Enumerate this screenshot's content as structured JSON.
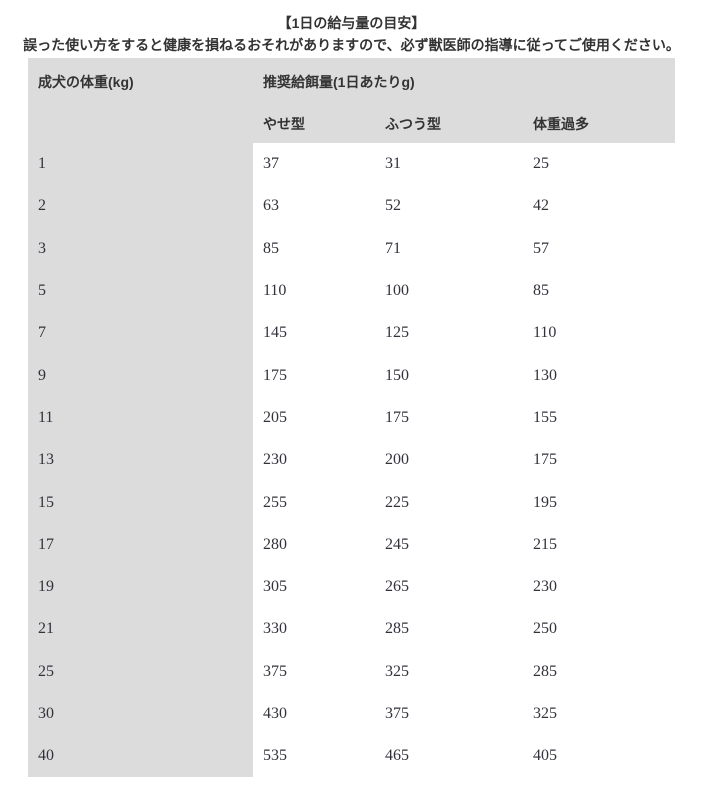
{
  "page": {
    "title": "【1日の給与量の目安】",
    "subtitle": "誤った使い方をすると健康を損ねるおそれがありますので、必ず獣医師の指導に従ってご使用ください。"
  },
  "table": {
    "col1_header": "成犬の体重(kg)",
    "group_header": "推奨給餌量(1日あたりg)",
    "sub_headers": [
      "やせ型",
      "ふつう型",
      "体重過多"
    ],
    "rows": [
      {
        "weight": "1",
        "thin": "37",
        "normal": "31",
        "overweight": "25"
      },
      {
        "weight": "2",
        "thin": "63",
        "normal": "52",
        "overweight": "42"
      },
      {
        "weight": "3",
        "thin": "85",
        "normal": "71",
        "overweight": "57"
      },
      {
        "weight": "5",
        "thin": "110",
        "normal": "100",
        "overweight": "85"
      },
      {
        "weight": "7",
        "thin": "145",
        "normal": "125",
        "overweight": "110"
      },
      {
        "weight": "9",
        "thin": "175",
        "normal": "150",
        "overweight": "130"
      },
      {
        "weight": "11",
        "thin": "205",
        "normal": "175",
        "overweight": "155"
      },
      {
        "weight": "13",
        "thin": "230",
        "normal": "200",
        "overweight": "175"
      },
      {
        "weight": "15",
        "thin": "255",
        "normal": "225",
        "overweight": "195"
      },
      {
        "weight": "17",
        "thin": "280",
        "normal": "245",
        "overweight": "215"
      },
      {
        "weight": "19",
        "thin": "305",
        "normal": "265",
        "overweight": "230"
      },
      {
        "weight": "21",
        "thin": "330",
        "normal": "285",
        "overweight": "250"
      },
      {
        "weight": "25",
        "thin": "375",
        "normal": "325",
        "overweight": "285"
      },
      {
        "weight": "30",
        "thin": "430",
        "normal": "375",
        "overweight": "325"
      },
      {
        "weight": "40",
        "thin": "535",
        "normal": "465",
        "overweight": "405"
      }
    ]
  },
  "colors": {
    "header_bg": "#dcdcdc",
    "text": "#333333",
    "numbers": "#32323c"
  }
}
